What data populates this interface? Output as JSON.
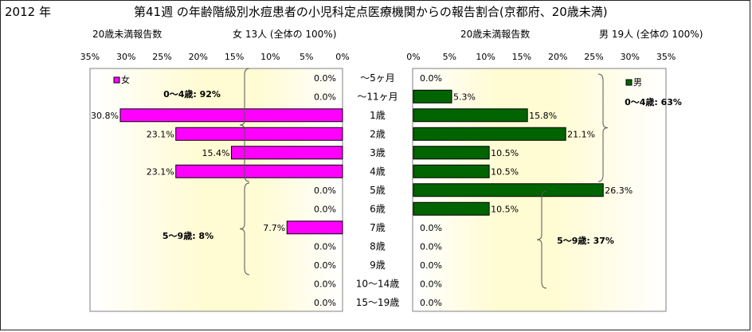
{
  "header": {
    "year": "2012 年",
    "title": "第41週 の年齢階級別水痘患者の小児科定点医療機関からの報告割合(京都府、20歳未満)"
  },
  "female_panel": {
    "subtitle": "20歳未満報告数",
    "summary": "女  13人 (全体の  100%)"
  },
  "male_panel": {
    "subtitle": "20歳未満報告数",
    "summary": "男  19人 (全体の  100%)"
  },
  "chart_data": [
    {
      "type": "bar",
      "orientation": "horizontal",
      "direction": "right-to-left",
      "categories": [
        "～5ヶ月",
        "～11ヶ月",
        "1歳",
        "2歳",
        "3歳",
        "4歳",
        "5歳",
        "6歳",
        "7歳",
        "8歳",
        "9歳",
        "10～14歳",
        "15～19歳"
      ],
      "series": [
        {
          "name": "女",
          "color": "#ff00ff",
          "values": [
            0.0,
            0.0,
            30.8,
            23.1,
            15.4,
            23.1,
            0.0,
            0.0,
            7.7,
            0.0,
            0.0,
            0.0,
            0.0
          ]
        }
      ],
      "data_labels": [
        "0.0%",
        "0.0%",
        "30.8%",
        "23.1%",
        "15.4%",
        "23.1%",
        "0.0%",
        "0.0%",
        "7.7%",
        "0.0%",
        "0.0%",
        "0.0%",
        "0.0%"
      ],
      "xlim": [
        0,
        35
      ],
      "xticks": [
        "0%",
        "5%",
        "10%",
        "15%",
        "20%",
        "25%",
        "30%",
        "35%"
      ],
      "legend": "top-left",
      "annotations": [
        "0～4歳: 92%",
        "5～9歳:  8%"
      ]
    },
    {
      "type": "bar",
      "orientation": "horizontal",
      "direction": "left-to-right",
      "categories": [
        "～5ヶ月",
        "～11ヶ月",
        "1歳",
        "2歳",
        "3歳",
        "4歳",
        "5歳",
        "6歳",
        "7歳",
        "8歳",
        "9歳",
        "10～14歳",
        "15～19歳"
      ],
      "series": [
        {
          "name": "男",
          "color": "#006400",
          "values": [
            0.0,
            5.3,
            15.8,
            21.1,
            10.5,
            10.5,
            26.3,
            10.5,
            0.0,
            0.0,
            0.0,
            0.0,
            0.0
          ]
        }
      ],
      "data_labels": [
        "0.0%",
        "5.3%",
        "15.8%",
        "21.1%",
        "10.5%",
        "10.5%",
        "26.3%",
        "10.5%",
        "0.0%",
        "0.0%",
        "0.0%",
        "0.0%",
        "0.0%"
      ],
      "xlim": [
        0,
        35
      ],
      "xticks": [
        "0%",
        "5%",
        "10%",
        "15%",
        "20%",
        "25%",
        "30%",
        "35%"
      ],
      "legend": "top-right",
      "annotations": [
        "0～4歳: 63%",
        "5～9歳: 37%"
      ]
    }
  ]
}
